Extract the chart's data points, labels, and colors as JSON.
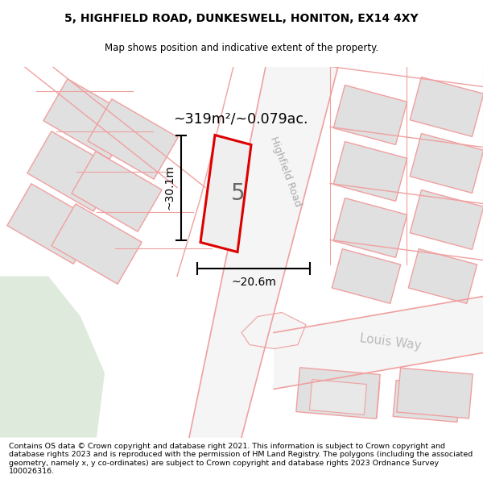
{
  "title_line1": "5, HIGHFIELD ROAD, DUNKESWELL, HONITON, EX14 4XY",
  "title_line2": "Map shows position and indicative extent of the property.",
  "footer_text": "Contains OS data © Crown copyright and database right 2021. This information is subject to Crown copyright and database rights 2023 and is reproduced with the permission of HM Land Registry. The polygons (including the associated geometry, namely x, y co-ordinates) are subject to Crown copyright and database rights 2023 Ordnance Survey 100026316.",
  "area_text": "~319m²/~0.079ac.",
  "plot_number": "5",
  "dim_width": "~20.6m",
  "dim_height": "~30.1m",
  "map_bg": "#ffffff",
  "plot_fill": "#e8e8e8",
  "plot_outline": "#dd0000",
  "road_line_color": "#f0a0a0",
  "block_fill": "#e0e0e0",
  "block_edge": "#c8c8c8",
  "block_outline_red": "#f0a0a0",
  "road_label_highfield": "Highfield Road",
  "road_label_louis": "Louis Way",
  "background_color": "#ffffff",
  "green_area_color": "#deeadc",
  "road_fill": "#f0f0f0",
  "road_edge": "#e8b0b0"
}
